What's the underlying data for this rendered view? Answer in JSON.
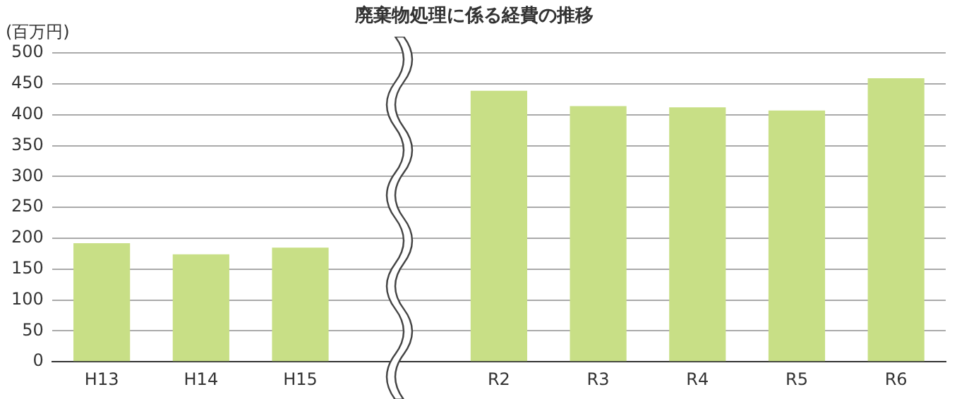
{
  "chart_data": {
    "type": "bar",
    "title": "廃棄物処理に係る経費の推移",
    "ylabel": "(百万円)",
    "categories": [
      "H13",
      "H14",
      "H15",
      null,
      "R2",
      "R3",
      "R4",
      "R5",
      "R6"
    ],
    "values": [
      192,
      174,
      185,
      null,
      439,
      414,
      412,
      407,
      459
    ],
    "color": "#c8df86",
    "ylim": [
      0,
      500
    ],
    "yticks": [
      0,
      50,
      100,
      150,
      200,
      250,
      300,
      350,
      400,
      450,
      500
    ],
    "grid": "y",
    "legend": false
  }
}
